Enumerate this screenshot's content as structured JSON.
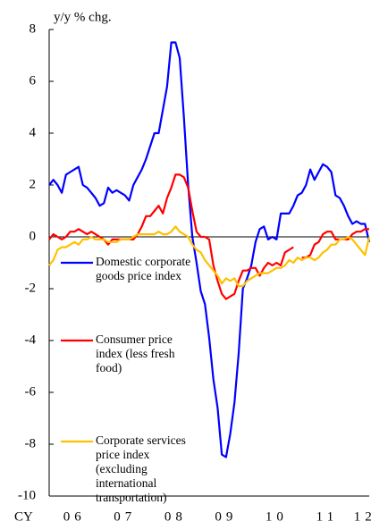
{
  "chart_data": {
    "type": "line",
    "y_label": "y/y % chg.",
    "x_label": "CY",
    "categories": [
      null,
      null,
      null,
      null,
      null,
      null,
      "06",
      null,
      null,
      null,
      null,
      null,
      null,
      null,
      null,
      null,
      null,
      null,
      "07",
      null,
      null,
      null,
      null,
      null,
      null,
      null,
      null,
      null,
      null,
      null,
      "08",
      null,
      null,
      null,
      null,
      null,
      null,
      null,
      null,
      null,
      null,
      null,
      "09",
      null,
      null,
      null,
      null,
      null,
      null,
      null,
      null,
      null,
      null,
      null,
      "10",
      null,
      null,
      null,
      null,
      null,
      null,
      null,
      null,
      null,
      null,
      null,
      "11",
      null,
      null,
      null,
      null,
      null,
      null,
      null,
      null,
      "12",
      null
    ],
    "series": [
      {
        "name": "Domestic corporate goods price index",
        "color": "#0000ff",
        "values": [
          2.0,
          2.2,
          2.0,
          1.7,
          2.4,
          2.5,
          2.6,
          2.7,
          2.0,
          1.9,
          1.7,
          1.5,
          1.2,
          1.3,
          1.9,
          1.7,
          1.8,
          1.7,
          1.6,
          1.4,
          2.0,
          2.3,
          2.6,
          3.0,
          3.5,
          4.0,
          4.0,
          4.9,
          5.8,
          7.5,
          7.5,
          6.9,
          4.6,
          2.0,
          0.0,
          -1.0,
          -2.1,
          -2.6,
          -3.9,
          -5.5,
          -6.6,
          -8.4,
          -8.5,
          -7.6,
          -6.4,
          -4.5,
          -2.0,
          -1.6,
          -1.1,
          -0.2,
          0.3,
          0.4,
          -0.1,
          0.0,
          -0.1,
          0.9,
          0.9,
          0.9,
          1.2,
          1.6,
          1.7,
          2.0,
          2.6,
          2.2,
          2.5,
          2.8,
          2.7,
          2.5,
          1.6,
          1.5,
          1.2,
          0.8,
          0.5,
          0.6,
          0.5,
          0.5,
          -0.2
        ]
      },
      {
        "name": "Consumer price index (less fresh food)",
        "color": "#ff0000",
        "values": [
          -0.1,
          0.1,
          0.0,
          -0.1,
          0.0,
          0.2,
          0.2,
          0.3,
          0.2,
          0.1,
          0.2,
          0.1,
          0.0,
          -0.1,
          -0.3,
          -0.1,
          -0.1,
          -0.1,
          -0.1,
          -0.1,
          -0.1,
          0.1,
          0.4,
          0.8,
          0.8,
          1.0,
          1.2,
          0.9,
          1.5,
          1.9,
          2.4,
          2.4,
          2.3,
          1.9,
          1.0,
          0.2,
          0.0,
          0.0,
          -0.1,
          -1.1,
          -1.7,
          -2.2,
          -2.4,
          -2.3,
          -2.2,
          -1.7,
          -1.3,
          -1.3,
          -1.2,
          -1.2,
          -1.5,
          -1.2,
          -1.0,
          -1.1,
          -1.0,
          -1.1,
          -0.6,
          -0.5,
          -0.4,
          null,
          -0.8,
          -0.8,
          -0.7,
          -0.3,
          -0.2,
          0.1,
          0.2,
          0.2,
          -0.1,
          -0.1,
          -0.1,
          -0.1,
          0.1,
          0.2,
          0.2,
          0.3,
          0.3
        ]
      },
      {
        "name": "Corporate services price index (excluding international transportation)",
        "color": "#ffc000",
        "values": [
          -1.1,
          -0.9,
          -0.5,
          -0.4,
          -0.4,
          -0.3,
          -0.2,
          -0.3,
          -0.1,
          -0.1,
          0.0,
          -0.1,
          -0.1,
          -0.1,
          -0.2,
          -0.2,
          -0.2,
          -0.1,
          -0.1,
          -0.1,
          0.0,
          0.1,
          0.1,
          0.1,
          0.1,
          0.1,
          0.2,
          0.1,
          0.1,
          0.2,
          0.4,
          0.2,
          0.1,
          0.0,
          -0.3,
          -0.5,
          -0.6,
          -0.9,
          -1.1,
          -1.3,
          -1.5,
          -1.8,
          -1.6,
          -1.7,
          -1.6,
          -1.9,
          -1.9,
          -1.7,
          -1.6,
          -1.5,
          -1.4,
          -1.4,
          -1.4,
          -1.3,
          -1.2,
          -1.2,
          -1.1,
          -0.9,
          -1.0,
          -0.8,
          -0.9,
          -0.8,
          -0.8,
          -0.9,
          -0.8,
          -0.6,
          -0.5,
          -0.3,
          -0.3,
          -0.1,
          -0.1,
          0.0,
          -0.1,
          -0.3,
          -0.5,
          -0.7,
          0.0
        ]
      }
    ],
    "ylim": [
      -10,
      8
    ],
    "yticks": [
      -10,
      -8,
      -6,
      -4,
      -2,
      0,
      2,
      4,
      6,
      8
    ],
    "grid": false,
    "legend": "left"
  }
}
